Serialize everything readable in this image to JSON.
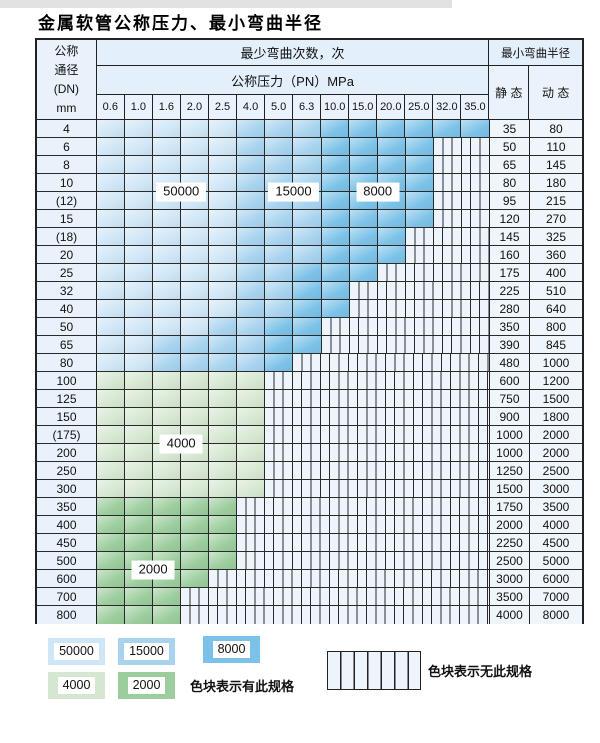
{
  "title": "金属软管公称压力、最小弯曲半径",
  "table": {
    "corner_lines": [
      "公称",
      "通径",
      "(DN)",
      "mm"
    ],
    "bend_header": "最少弯曲次数，次",
    "pressure_header": "公称压力（PN）MPa",
    "pressure_columns": [
      "0.6",
      "1.0",
      "1.6",
      "2.0",
      "2.5",
      "4.0",
      "5.0",
      "6.3",
      "10.0",
      "15.0",
      "20.0",
      "25.0",
      "32.0",
      "35.0"
    ],
    "radius_header": "最小弯曲半径",
    "static_label": "静 态",
    "dynamic_label": "动 态",
    "rows": [
      {
        "dn": "4",
        "static": "35",
        "dynamic": "80",
        "spans": [
          [
            5,
            "z50000"
          ],
          [
            3,
            "z15000"
          ],
          [
            6,
            "z8000"
          ]
        ]
      },
      {
        "dn": "6",
        "static": "50",
        "dynamic": "110",
        "spans": [
          [
            5,
            "z50000"
          ],
          [
            3,
            "z15000"
          ],
          [
            4,
            "z8000"
          ]
        ]
      },
      {
        "dn": "8",
        "static": "65",
        "dynamic": "145",
        "spans": [
          [
            5,
            "z50000"
          ],
          [
            3,
            "z15000"
          ],
          [
            4,
            "z8000"
          ]
        ]
      },
      {
        "dn": "10",
        "static": "80",
        "dynamic": "180",
        "spans": [
          [
            5,
            "z50000"
          ],
          [
            3,
            "z15000"
          ],
          [
            4,
            "z8000"
          ]
        ]
      },
      {
        "dn": "(12)",
        "static": "95",
        "dynamic": "215",
        "spans": [
          [
            5,
            "z50000"
          ],
          [
            3,
            "z15000"
          ],
          [
            4,
            "z8000"
          ]
        ]
      },
      {
        "dn": "15",
        "static": "120",
        "dynamic": "270",
        "spans": [
          [
            5,
            "z50000"
          ],
          [
            3,
            "z15000"
          ],
          [
            4,
            "z8000"
          ]
        ]
      },
      {
        "dn": "(18)",
        "static": "145",
        "dynamic": "325",
        "spans": [
          [
            5,
            "z50000"
          ],
          [
            3,
            "z15000"
          ],
          [
            3,
            "z8000"
          ]
        ]
      },
      {
        "dn": "20",
        "static": "160",
        "dynamic": "360",
        "spans": [
          [
            5,
            "z50000"
          ],
          [
            3,
            "z15000"
          ],
          [
            3,
            "z8000"
          ]
        ]
      },
      {
        "dn": "25",
        "static": "175",
        "dynamic": "400",
        "spans": [
          [
            5,
            "z50000"
          ],
          [
            2,
            "z15000"
          ],
          [
            3,
            "z8000"
          ]
        ]
      },
      {
        "dn": "32",
        "static": "225",
        "dynamic": "510",
        "spans": [
          [
            5,
            "z50000"
          ],
          [
            2,
            "z15000"
          ],
          [
            2,
            "z8000"
          ]
        ]
      },
      {
        "dn": "40",
        "static": "280",
        "dynamic": "640",
        "spans": [
          [
            5,
            "z50000"
          ],
          [
            2,
            "z15000"
          ],
          [
            2,
            "z8000"
          ]
        ]
      },
      {
        "dn": "50",
        "static": "350",
        "dynamic": "800",
        "spans": [
          [
            4,
            "z50000"
          ],
          [
            2,
            "z15000"
          ],
          [
            2,
            "z8000"
          ]
        ]
      },
      {
        "dn": "65",
        "static": "390",
        "dynamic": "845",
        "spans": [
          [
            2,
            "z50000"
          ],
          [
            4,
            "z15000"
          ],
          [
            2,
            "z8000"
          ]
        ]
      },
      {
        "dn": "80",
        "static": "480",
        "dynamic": "1000",
        "spans": [
          [
            2,
            "z50000"
          ],
          [
            4,
            "z15000"
          ],
          [
            1,
            "z8000"
          ]
        ]
      },
      {
        "dn": "100",
        "static": "600",
        "dynamic": "1200",
        "spans": [
          [
            6,
            "z4000"
          ]
        ]
      },
      {
        "dn": "125",
        "static": "750",
        "dynamic": "1500",
        "spans": [
          [
            6,
            "z4000"
          ]
        ]
      },
      {
        "dn": "150",
        "static": "900",
        "dynamic": "1800",
        "spans": [
          [
            6,
            "z4000"
          ]
        ]
      },
      {
        "dn": "(175)",
        "static": "1000",
        "dynamic": "2000",
        "spans": [
          [
            6,
            "z4000"
          ]
        ]
      },
      {
        "dn": "200",
        "static": "1000",
        "dynamic": "2000",
        "spans": [
          [
            6,
            "z4000"
          ]
        ]
      },
      {
        "dn": "250",
        "static": "1250",
        "dynamic": "2500",
        "spans": [
          [
            6,
            "z4000"
          ]
        ]
      },
      {
        "dn": "300",
        "static": "1500",
        "dynamic": "3000",
        "spans": [
          [
            6,
            "z4000"
          ]
        ]
      },
      {
        "dn": "350",
        "static": "1750",
        "dynamic": "3500",
        "spans": [
          [
            5,
            "z2000"
          ]
        ]
      },
      {
        "dn": "400",
        "static": "2000",
        "dynamic": "4000",
        "spans": [
          [
            5,
            "z2000"
          ]
        ]
      },
      {
        "dn": "450",
        "static": "2250",
        "dynamic": "4500",
        "spans": [
          [
            5,
            "z2000"
          ]
        ]
      },
      {
        "dn": "500",
        "static": "2500",
        "dynamic": "5000",
        "spans": [
          [
            5,
            "z2000"
          ]
        ]
      },
      {
        "dn": "600",
        "static": "3000",
        "dynamic": "6000",
        "spans": [
          [
            4,
            "z2000"
          ]
        ]
      },
      {
        "dn": "700",
        "static": "3500",
        "dynamic": "7000",
        "spans": [
          [
            3,
            "z2000"
          ]
        ]
      },
      {
        "dn": "800",
        "static": "4000",
        "dynamic": "8000",
        "spans": [
          [
            3,
            "z2000"
          ]
        ]
      }
    ]
  },
  "zone_labels": [
    {
      "text": "50000",
      "after_col": 3,
      "after_row": 4
    },
    {
      "text": "15000",
      "after_col": 7,
      "after_row": 4
    },
    {
      "text": "8000",
      "after_col": 10,
      "after_row": 4
    },
    {
      "text": "4000",
      "after_col": 3,
      "after_row": 18
    },
    {
      "text": "2000",
      "after_col": 2,
      "after_row": 25
    }
  ],
  "legend": {
    "available_items": [
      {
        "value": "50000",
        "zone": "z50000"
      },
      {
        "value": "15000",
        "zone": "z15000"
      },
      {
        "value": "8000",
        "zone": "z8000"
      },
      {
        "value": "4000",
        "zone": "z4000"
      },
      {
        "value": "2000",
        "zone": "z2000"
      }
    ],
    "available_note": "色块表示有此规格",
    "unavailable_note": "色块表示无此规格"
  },
  "colors": {
    "z50000": "#cfe6f6",
    "z15000": "#a8d3ef",
    "z8000": "#7cc2e8",
    "z4000": "#d6e7d1",
    "z2000": "#9ccd9d",
    "nospec_bg": "#edf4fb",
    "grid_line": "#2a2a2a"
  }
}
